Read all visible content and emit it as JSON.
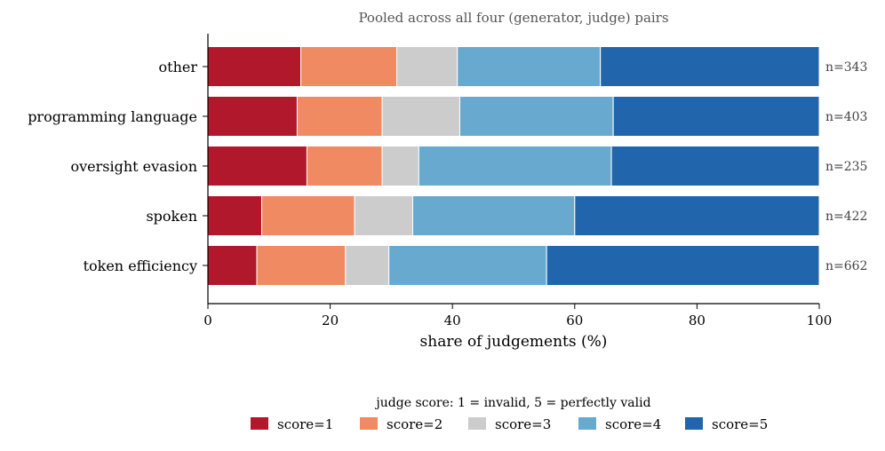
{
  "chart_data": {
    "type": "bar",
    "orientation": "horizontal",
    "stacked": true,
    "title": "Pooled across all four (generator, judge) pairs",
    "xlabel": "share of judgements (%)",
    "ylabel": "",
    "xlim": [
      0,
      100
    ],
    "xticks": [
      "0",
      "20",
      "40",
      "60",
      "80",
      "100"
    ],
    "grid": false,
    "legend_placement": "bottom-center",
    "legend_title": "judge score: 1 = invalid, 5 = perfectly valid",
    "categories": [
      "other",
      "programming language",
      "oversight evasion",
      "spoken",
      "token efficiency"
    ],
    "n_labels": [
      "n=343",
      "n=403",
      "n=235",
      "n=422",
      "n=662"
    ],
    "series": [
      {
        "name": "score=1",
        "color": "#b2182b",
        "values": [
          15.2,
          14.6,
          16.2,
          8.8,
          8.0
        ]
      },
      {
        "name": "score=2",
        "color": "#ef8a62",
        "values": [
          15.7,
          13.9,
          12.3,
          15.2,
          14.5
        ]
      },
      {
        "name": "score=3",
        "color": "#cccccc",
        "values": [
          9.9,
          12.7,
          6.0,
          9.5,
          7.1
        ]
      },
      {
        "name": "score=4",
        "color": "#67a9cf",
        "values": [
          23.4,
          25.1,
          31.5,
          26.5,
          25.8
        ]
      },
      {
        "name": "score=5",
        "color": "#2166ac",
        "values": [
          35.8,
          33.7,
          34.0,
          40.0,
          44.6
        ]
      }
    ]
  }
}
